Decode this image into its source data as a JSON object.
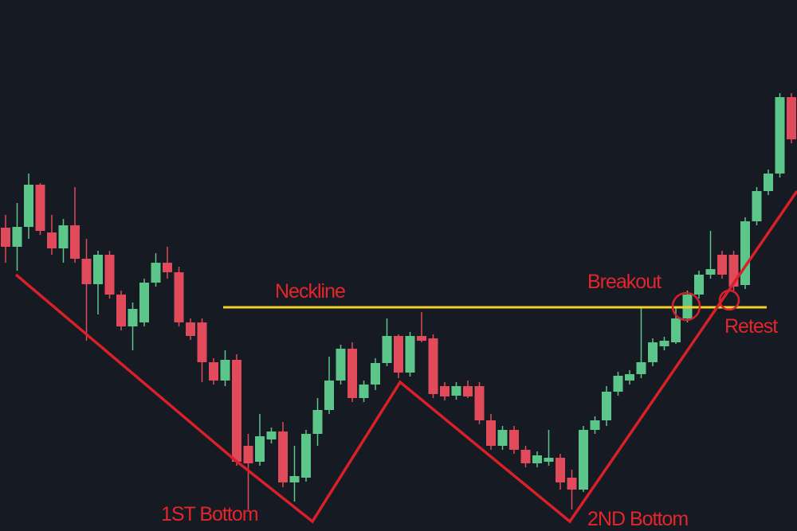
{
  "chart_data": {
    "type": "candlestick",
    "open": [
      381,
      357,
      382,
      435,
      375,
      355,
      384,
      342,
      310,
      347,
      297,
      257,
      262,
      312,
      337,
      325,
      262,
      262,
      212,
      189,
      215,
      107,
      87,
      115,
      125,
      61,
      67,
      122,
      152,
      189,
      229,
      167,
      184,
      211,
      245,
      199,
      245,
      242,
      182,
      170,
      182,
      182,
      139,
      107,
      127,
      102,
      85,
      87,
      92,
      67,
      52,
      127,
      139,
      175,
      189,
      197,
      212,
      232,
      237,
      267,
      297,
      322,
      347,
      347,
      309,
      389,
      427,
      449,
      545
    ],
    "high": [
      397,
      412,
      449,
      437,
      397,
      392,
      432,
      367,
      352,
      352,
      302,
      287,
      317,
      349,
      357,
      332,
      267,
      267,
      217,
      227,
      222,
      122,
      147,
      130,
      137,
      107,
      127,
      167,
      219,
      234,
      237,
      189,
      217,
      267,
      247,
      250,
      275,
      247,
      187,
      187,
      189,
      187,
      147,
      132,
      132,
      107,
      100,
      127,
      97,
      77,
      132,
      144,
      182,
      200,
      202,
      282,
      242,
      244,
      282,
      302,
      327,
      377,
      352,
      352,
      394,
      432,
      454,
      550,
      550
    ],
    "low": [
      337,
      327,
      367,
      372,
      347,
      337,
      337,
      239,
      272,
      292,
      252,
      227,
      257,
      307,
      317,
      257,
      240,
      187,
      184,
      182,
      82,
      27,
      82,
      110,
      55,
      37,
      62,
      107,
      147,
      184,
      162,
      162,
      177,
      207,
      192,
      194,
      237,
      167,
      164,
      165,
      167,
      134,
      102,
      102,
      97,
      80,
      80,
      82,
      52,
      27,
      49,
      122,
      132,
      170,
      184,
      192,
      207,
      227,
      235,
      262,
      292,
      317,
      317,
      302,
      304,
      384,
      422,
      444,
      487
    ],
    "close": [
      357,
      382,
      435,
      377,
      355,
      384,
      342,
      310,
      347,
      297,
      257,
      279,
      312,
      337,
      325,
      262,
      245,
      212,
      189,
      215,
      87,
      85,
      119,
      125,
      61,
      69,
      122,
      152,
      189,
      229,
      167,
      184,
      211,
      245,
      199,
      245,
      239,
      172,
      169,
      182,
      169,
      139,
      107,
      127,
      102,
      85,
      95,
      92,
      61,
      52,
      127,
      139,
      175,
      195,
      197,
      212,
      237,
      239,
      267,
      297,
      322,
      329,
      322,
      307,
      389,
      427,
      449,
      545,
      492
    ],
    "ylim": [
      0,
      667
    ],
    "up_color": "#5cc58a",
    "down_color": "#e14a5b",
    "annotations": [
      "Neckline",
      "Breakout",
      "Retest",
      "1ST Bottom",
      "2ND Bottom"
    ]
  }
}
